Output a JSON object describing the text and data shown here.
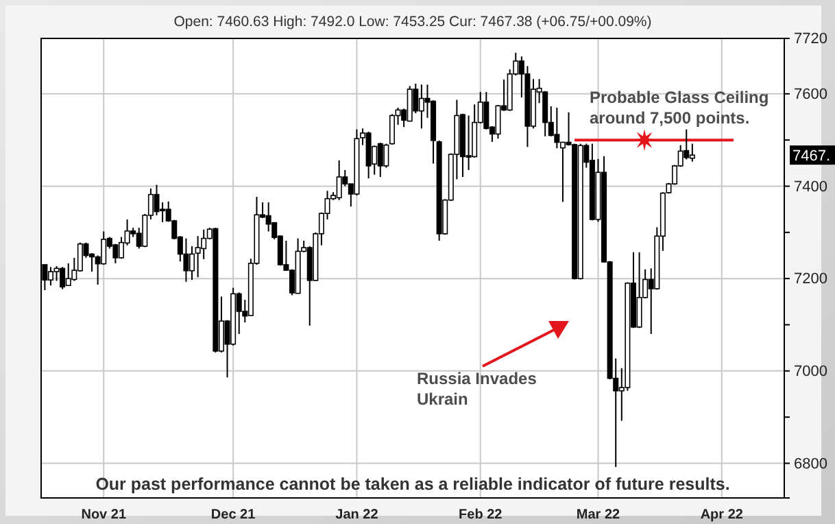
{
  "chart_data": {
    "type": "candlestick",
    "subtitle": "Open: 7460.63 High: 7492.0 Low: 7453.25 Cur: 7467.38 (+06.75/+00.09%)",
    "categories": [
      null,
      null,
      null,
      null,
      null,
      null,
      null,
      null,
      null,
      null,
      "Nov 21",
      null,
      null,
      null,
      null,
      null,
      null,
      null,
      null,
      null,
      null,
      null,
      null,
      null,
      null,
      null,
      null,
      null,
      null,
      null,
      null,
      null,
      "Dec 21",
      null,
      null,
      null,
      null,
      null,
      null,
      null,
      null,
      null,
      null,
      null,
      null,
      null,
      null,
      null,
      null,
      null,
      null,
      null,
      null,
      "Jan 22",
      null,
      null,
      null,
      null,
      null,
      null,
      null,
      null,
      null,
      null,
      null,
      null,
      null,
      null,
      null,
      null,
      null,
      null,
      null,
      null,
      "Feb 22",
      null,
      null,
      null,
      null,
      null,
      null,
      null,
      null,
      null,
      null,
      null,
      null,
      null,
      null,
      null,
      null,
      null,
      null,
      null,
      "Mar 22",
      null,
      null,
      null,
      null,
      null,
      null,
      null,
      null,
      null,
      null,
      null,
      null,
      null,
      null,
      null,
      null,
      null,
      null,
      null,
      null,
      "Apr 22",
      null,
      null,
      null,
      null,
      null,
      null,
      null,
      null,
      null,
      null
    ],
    "ohlc": [
      [
        7230,
        7230,
        7175,
        7197
      ],
      [
        7197,
        7225,
        7185,
        7215
      ],
      [
        7215,
        7227,
        7195,
        7222
      ],
      [
        7222,
        7225,
        7177,
        7182
      ],
      [
        7185,
        7233,
        7185,
        7200
      ],
      [
        7198,
        7245,
        7195,
        7218
      ],
      [
        7217,
        7278,
        7215,
        7275
      ],
      [
        7275,
        7278,
        7245,
        7250
      ],
      [
        7253,
        7255,
        7215,
        7247
      ],
      [
        7247,
        7250,
        7187,
        7232
      ],
      [
        7232,
        7302,
        7230,
        7285
      ],
      [
        7287,
        7290,
        7265,
        7270
      ],
      [
        7273,
        7275,
        7233,
        7245
      ],
      [
        7245,
        7290,
        7243,
        7278
      ],
      [
        7277,
        7328,
        7272,
        7303
      ],
      [
        7303,
        7310,
        7290,
        7297
      ],
      [
        7298,
        7310,
        7265,
        7270
      ],
      [
        7270,
        7340,
        7268,
        7337
      ],
      [
        7337,
        7395,
        7328,
        7382
      ],
      [
        7382,
        7403,
        7337,
        7345
      ],
      [
        7350,
        7365,
        7322,
        7347
      ],
      [
        7350,
        7367,
        7323,
        7325
      ],
      [
        7325,
        7327,
        7285,
        7287
      ],
      [
        7290,
        7292,
        7237,
        7253
      ],
      [
        7253,
        7287,
        7193,
        7217
      ],
      [
        7217,
        7270,
        7197,
        7253
      ],
      [
        7255,
        7292,
        7203,
        7267
      ],
      [
        7265,
        7306,
        7242,
        7287
      ],
      [
        7287,
        7310,
        7285,
        7307
      ],
      [
        7308,
        7310,
        7040,
        7043
      ],
      [
        7043,
        7161,
        7040,
        7108
      ],
      [
        7108,
        7110,
        6986,
        7058
      ],
      [
        7058,
        7180,
        7055,
        7167
      ],
      [
        7167,
        7170,
        7080,
        7129
      ],
      [
        7129,
        7154,
        7105,
        7119
      ],
      [
        7120,
        7243,
        7120,
        7233
      ],
      [
        7233,
        7377,
        7230,
        7338
      ],
      [
        7338,
        7365,
        7331,
        7333
      ],
      [
        7336,
        7365,
        7302,
        7318
      ],
      [
        7321,
        7322,
        7285,
        7289
      ],
      [
        7292,
        7293,
        7228,
        7230
      ],
      [
        7230,
        7282,
        7218,
        7218
      ],
      [
        7218,
        7220,
        7164,
        7169
      ],
      [
        7168,
        7287,
        7168,
        7259
      ],
      [
        7259,
        7282,
        7257,
        7267
      ],
      [
        7267,
        7270,
        7098,
        7196
      ],
      [
        7196,
        7300,
        7195,
        7297
      ],
      [
        7297,
        7343,
        7272,
        7341
      ],
      [
        7341,
        7390,
        7328,
        7373
      ],
      [
        7373,
        7387,
        7370,
        7380
      ],
      [
        7375,
        7456,
        7370,
        7420
      ],
      [
        7420,
        7435,
        7400,
        7405
      ],
      [
        7405,
        7405,
        7356,
        7383
      ],
      [
        7383,
        7523,
        7380,
        7503
      ],
      [
        7505,
        7525,
        7489,
        7515
      ],
      [
        7515,
        7518,
        7417,
        7444
      ],
      [
        7448,
        7488,
        7425,
        7486
      ],
      [
        7492,
        7494,
        7420,
        7444
      ],
      [
        7444,
        7492,
        7440,
        7489
      ],
      [
        7492,
        7556,
        7490,
        7553
      ],
      [
        7553,
        7570,
        7533,
        7565
      ],
      [
        7565,
        7568,
        7528,
        7543
      ],
      [
        7541,
        7617,
        7540,
        7610
      ],
      [
        7610,
        7622,
        7558,
        7563
      ],
      [
        7563,
        7620,
        7525,
        7590
      ],
      [
        7590,
        7620,
        7548,
        7582
      ],
      [
        7584,
        7586,
        7449,
        7499
      ],
      [
        7496,
        7499,
        7282,
        7297
      ],
      [
        7297,
        7372,
        7295,
        7370
      ],
      [
        7370,
        7471,
        7368,
        7469
      ],
      [
        7469,
        7587,
        7415,
        7553
      ],
      [
        7555,
        7557,
        7420,
        7464
      ],
      [
        7466,
        7553,
        7435,
        7464
      ],
      [
        7464,
        7577,
        7462,
        7538
      ],
      [
        7538,
        7604,
        7536,
        7582
      ],
      [
        7582,
        7604,
        7523,
        7525
      ],
      [
        7528,
        7530,
        7496,
        7513
      ],
      [
        7513,
        7576,
        7503,
        7574
      ],
      [
        7574,
        7631,
        7563,
        7565
      ],
      [
        7565,
        7653,
        7563,
        7643
      ],
      [
        7643,
        7689,
        7640,
        7671
      ],
      [
        7671,
        7681,
        7592,
        7643
      ],
      [
        7643,
        7660,
        7485,
        7530
      ],
      [
        7530,
        7632,
        7525,
        7610
      ],
      [
        7604,
        7632,
        7580,
        7612
      ],
      [
        7604,
        7606,
        7508,
        7538
      ],
      [
        7538,
        7573,
        7508,
        7510
      ],
      [
        7512,
        7570,
        7482,
        7495
      ],
      [
        7483,
        7496,
        7366,
        7495
      ],
      [
        7495,
        7560,
        7488,
        7490
      ],
      [
        7490,
        7492,
        7198,
        7200
      ],
      [
        7200,
        7492,
        7198,
        7488
      ],
      [
        7488,
        7492,
        7440,
        7452
      ],
      [
        7456,
        7492,
        7326,
        7328
      ],
      [
        7328,
        7459,
        7323,
        7430
      ],
      [
        7430,
        7465,
        7235,
        7236
      ],
      [
        7236,
        7238,
        6982,
        6984
      ],
      [
        6984,
        7027,
        6792,
        6957
      ],
      [
        6957,
        7006,
        6892,
        6964
      ],
      [
        6964,
        7192,
        6957,
        7190
      ],
      [
        7190,
        7257,
        7093,
        7095
      ],
      [
        7095,
        7257,
        7093,
        7159
      ],
      [
        7159,
        7220,
        7157,
        7198
      ],
      [
        7198,
        7222,
        7080,
        7178
      ],
      [
        7178,
        7311,
        7176,
        7292
      ],
      [
        7292,
        7387,
        7260,
        7385
      ],
      [
        7386,
        7407,
        7384,
        7405
      ],
      [
        7405,
        7446,
        7403,
        7444
      ],
      [
        7444,
        7489,
        7442,
        7476
      ],
      [
        7477,
        7523,
        7458,
        7462
      ],
      [
        7460.63,
        7492.0,
        7453.25,
        7467.38
      ],
      null,
      null,
      null,
      null,
      null,
      null,
      null,
      null,
      null,
      null,
      null,
      null,
      null,
      null,
      null
    ],
    "series": [
      {
        "type": "line",
        "color": "#e3161d",
        "values": [
          null,
          null,
          null,
          null,
          null,
          null,
          null,
          null,
          null,
          null,
          null,
          null,
          null,
          null,
          null,
          null,
          null,
          null,
          null,
          null,
          null,
          null,
          null,
          null,
          null,
          null,
          null,
          null,
          null,
          null,
          null,
          null,
          null,
          null,
          null,
          null,
          null,
          null,
          null,
          null,
          null,
          null,
          null,
          null,
          null,
          null,
          null,
          null,
          null,
          null,
          null,
          null,
          null,
          null,
          null,
          null,
          null,
          null,
          null,
          null,
          null,
          null,
          null,
          null,
          null,
          null,
          null,
          null,
          null,
          null,
          null,
          null,
          null,
          null,
          null,
          null,
          null,
          null,
          null,
          null,
          null,
          null,
          null,
          null,
          null,
          null,
          null,
          null,
          null,
          null,
          7500,
          7500,
          7500,
          7500,
          7500,
          7500,
          7500,
          7500,
          7500,
          7500,
          7500,
          7500,
          7500,
          7500,
          7500,
          7500,
          7500,
          7500,
          7500,
          7500,
          7500,
          7500,
          7500,
          7500,
          7500,
          7500,
          7500,
          7500,
          null,
          null,
          null,
          null,
          null,
          null,
          null,
          null
        ]
      }
    ],
    "ylim": [
      6725,
      7720
    ],
    "yticks": [
      6800,
      {
        "value": 6900,
        "label": null
      },
      7000,
      {
        "value": 7100,
        "label": null
      },
      7200,
      {
        "value": 7300,
        "label": null
      },
      7400,
      {
        "value": 7500,
        "label": null
      },
      7600,
      7720
    ],
    "grid": true,
    "annotations": [
      "Probable Glass Ceiling\naround 7,500 points.",
      "Russia Invades\nUkrain",
      "Our past performance cannot be taken as a reliable indicator of future results.",
      "7467."
    ]
  }
}
